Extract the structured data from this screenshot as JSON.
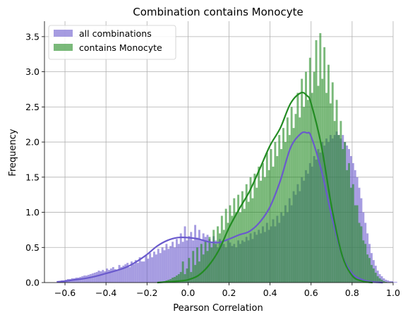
{
  "chart_data": {
    "type": "bar",
    "title": "Combination contains Monocyte",
    "xlabel": "Pearson Correlation",
    "ylabel": "Frequency",
    "xlim": [
      -0.7,
      1.0
    ],
    "ylim": [
      0,
      3.72
    ],
    "xticks": [
      -0.6,
      -0.4,
      -0.2,
      0.0,
      0.2,
      0.4,
      0.6,
      0.8,
      1.0
    ],
    "xtick_labels": [
      "−0.6",
      "−0.4",
      "−0.2",
      "0.0",
      "0.2",
      "0.4",
      "0.6",
      "0.8",
      "1.0"
    ],
    "yticks": [
      0.0,
      0.5,
      1.0,
      1.5,
      2.0,
      2.5,
      3.0,
      3.5
    ],
    "ytick_labels": [
      "0.0",
      "0.5",
      "1.0",
      "1.5",
      "2.0",
      "2.5",
      "3.0",
      "3.5"
    ],
    "grid": true,
    "legend_position": "top-left",
    "bin_width": 0.01,
    "series": [
      {
        "name": "all combinations",
        "kind": "histogram",
        "color": "#6a5acd",
        "bin_start": -0.64,
        "values": [
          0.02,
          0.02,
          0.03,
          0.03,
          0.04,
          0.05,
          0.05,
          0.06,
          0.06,
          0.07,
          0.07,
          0.08,
          0.09,
          0.1,
          0.1,
          0.11,
          0.12,
          0.13,
          0.14,
          0.15,
          0.17,
          0.16,
          0.18,
          0.16,
          0.2,
          0.18,
          0.2,
          0.22,
          0.19,
          0.17,
          0.25,
          0.22,
          0.24,
          0.26,
          0.28,
          0.22,
          0.3,
          0.26,
          0.32,
          0.28,
          0.36,
          0.3,
          0.3,
          0.38,
          0.34,
          0.42,
          0.36,
          0.44,
          0.4,
          0.48,
          0.42,
          0.5,
          0.46,
          0.55,
          0.48,
          0.52,
          0.58,
          0.5,
          0.62,
          0.55,
          0.7,
          0.58,
          0.8,
          0.6,
          0.66,
          0.72,
          0.6,
          0.82,
          0.64,
          0.75,
          0.6,
          0.7,
          0.65,
          0.68,
          0.62,
          0.58,
          0.66,
          0.6,
          0.5,
          0.62,
          0.58,
          0.55,
          0.5,
          0.6,
          0.57,
          0.52,
          0.55,
          0.5,
          0.6,
          0.55,
          0.6,
          0.58,
          0.65,
          0.6,
          0.7,
          0.62,
          0.72,
          0.68,
          0.75,
          0.7,
          0.8,
          0.72,
          0.85,
          0.75,
          0.8,
          0.9,
          0.8,
          0.95,
          0.85,
          1.0,
          0.95,
          1.1,
          1.0,
          1.2,
          1.1,
          1.3,
          1.25,
          1.4,
          1.3,
          1.5,
          1.45,
          1.6,
          1.55,
          1.7,
          1.65,
          1.8,
          1.75,
          1.9,
          1.85,
          2.0,
          1.95,
          2.05,
          2.0,
          2.1,
          2.05,
          2.1,
          2.15,
          2.1,
          2.05,
          2.1,
          2.0,
          1.95,
          1.9,
          1.8,
          1.7,
          1.6,
          1.5,
          1.35,
          1.2,
          1.0,
          0.85,
          0.7,
          0.55,
          0.42,
          0.32,
          0.24,
          0.17,
          0.12,
          0.09,
          0.06,
          0.04,
          0.03,
          0.02,
          0.02,
          0.01,
          0.01
        ]
      },
      {
        "name": "contains Monocyte",
        "kind": "histogram",
        "color": "#228b22",
        "bin_start": -0.12,
        "values": [
          0.02,
          0.03,
          0.04,
          0.05,
          0.07,
          0.08,
          0.1,
          0.12,
          0.15,
          0.3,
          0.12,
          0.2,
          0.35,
          0.15,
          0.45,
          0.25,
          0.5,
          0.3,
          0.55,
          0.4,
          0.6,
          0.45,
          0.65,
          0.5,
          0.75,
          0.55,
          0.8,
          0.7,
          0.95,
          0.75,
          1.05,
          0.85,
          1.1,
          0.95,
          1.2,
          1.0,
          1.25,
          1.0,
          1.3,
          1.05,
          1.4,
          1.15,
          1.5,
          1.2,
          1.55,
          1.35,
          1.65,
          1.45,
          1.7,
          1.5,
          1.85,
          1.6,
          1.9,
          1.65,
          2.0,
          1.8,
          2.1,
          1.9,
          2.2,
          2.0,
          2.35,
          2.1,
          2.5,
          2.2,
          2.4,
          2.7,
          2.35,
          2.9,
          2.5,
          3.0,
          2.6,
          3.2,
          2.7,
          3.0,
          3.45,
          2.8,
          3.55,
          2.9,
          3.35,
          2.7,
          3.1,
          2.55,
          2.85,
          2.3,
          2.6,
          2.1,
          2.3,
          1.9,
          2.0,
          1.6,
          1.7,
          1.35,
          1.4,
          1.1,
          1.1,
          0.85,
          0.8,
          0.6,
          0.55,
          0.4,
          0.35,
          0.25,
          0.2,
          0.14,
          0.09,
          0.06,
          0.04,
          0.02,
          0.01
        ]
      },
      {
        "name": "all combinations",
        "kind": "kde",
        "color": "#6a5acd",
        "x": [
          -0.64,
          -0.6,
          -0.55,
          -0.5,
          -0.45,
          -0.4,
          -0.35,
          -0.3,
          -0.25,
          -0.2,
          -0.15,
          -0.1,
          -0.05,
          0.0,
          0.05,
          0.1,
          0.15,
          0.2,
          0.25,
          0.3,
          0.35,
          0.4,
          0.45,
          0.5,
          0.55,
          0.58,
          0.6,
          0.65,
          0.7,
          0.75,
          0.8,
          0.85,
          0.9,
          0.95
        ],
        "y": [
          0.01,
          0.02,
          0.04,
          0.06,
          0.09,
          0.13,
          0.17,
          0.22,
          0.3,
          0.4,
          0.52,
          0.6,
          0.64,
          0.64,
          0.62,
          0.58,
          0.57,
          0.62,
          0.68,
          0.73,
          0.86,
          1.08,
          1.45,
          1.92,
          2.12,
          2.13,
          2.08,
          1.6,
          0.95,
          0.4,
          0.13,
          0.04,
          0.01,
          0.0
        ]
      },
      {
        "name": "contains Monocyte",
        "kind": "kde",
        "color": "#228b22",
        "x": [
          -0.15,
          -0.1,
          -0.05,
          0.0,
          0.05,
          0.1,
          0.15,
          0.2,
          0.25,
          0.3,
          0.35,
          0.4,
          0.45,
          0.5,
          0.55,
          0.58,
          0.6,
          0.65,
          0.7,
          0.75,
          0.8,
          0.85,
          0.9
        ],
        "y": [
          0.0,
          0.01,
          0.02,
          0.04,
          0.1,
          0.24,
          0.46,
          0.78,
          1.05,
          1.3,
          1.62,
          1.95,
          2.2,
          2.55,
          2.7,
          2.66,
          2.55,
          1.95,
          1.08,
          0.4,
          0.1,
          0.02,
          0.0
        ]
      }
    ]
  }
}
